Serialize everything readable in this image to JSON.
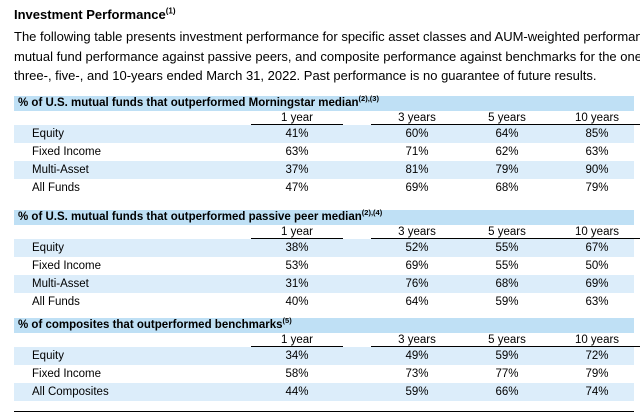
{
  "title": "Investment Performance",
  "title_note": "(1)",
  "intro_lines": [
    "The following table presents investment performance for specific asset classes and AUM-weighted performance,",
    "mutual fund performance against passive peers, and composite performance against benchmarks for the one-,",
    "three-, five-, and 10-years ended March 31, 2022. Past performance is no guarantee of future results."
  ],
  "columns": [
    "1 year",
    "3 years",
    "5 years",
    "10 years"
  ],
  "sections": [
    {
      "heading": "% of U.S. mutual funds that outperformed Morningstar median",
      "note": "(2),(3)",
      "rows": [
        {
          "label": "Equity",
          "values": [
            "41%",
            "60%",
            "64%",
            "85%"
          ]
        },
        {
          "label": "Fixed Income",
          "values": [
            "63%",
            "71%",
            "62%",
            "63%"
          ]
        },
        {
          "label": "Multi-Asset",
          "values": [
            "37%",
            "81%",
            "79%",
            "90%"
          ]
        },
        {
          "label": "All Funds",
          "values": [
            "47%",
            "69%",
            "68%",
            "79%"
          ]
        }
      ]
    },
    {
      "heading": "% of U.S. mutual funds that outperformed passive peer median",
      "note": "(2),(4)",
      "rows": [
        {
          "label": "Equity",
          "values": [
            "38%",
            "52%",
            "55%",
            "67%"
          ]
        },
        {
          "label": "Fixed Income",
          "values": [
            "53%",
            "69%",
            "55%",
            "50%"
          ]
        },
        {
          "label": "Multi-Asset",
          "values": [
            "31%",
            "76%",
            "68%",
            "69%"
          ]
        },
        {
          "label": "All Funds",
          "values": [
            "40%",
            "64%",
            "59%",
            "63%"
          ]
        }
      ]
    },
    {
      "heading": "% of composites that outperformed benchmarks",
      "note": "(5)",
      "rows": [
        {
          "label": "Equity",
          "values": [
            "34%",
            "49%",
            "59%",
            "72%"
          ]
        },
        {
          "label": "Fixed Income",
          "values": [
            "58%",
            "73%",
            "77%",
            "79%"
          ]
        },
        {
          "label": "All Composites",
          "values": [
            "44%",
            "59%",
            "66%",
            "74%"
          ]
        }
      ]
    }
  ],
  "colors": {
    "header_band": "#bfe0f5",
    "row_band": "#dcedfa"
  }
}
